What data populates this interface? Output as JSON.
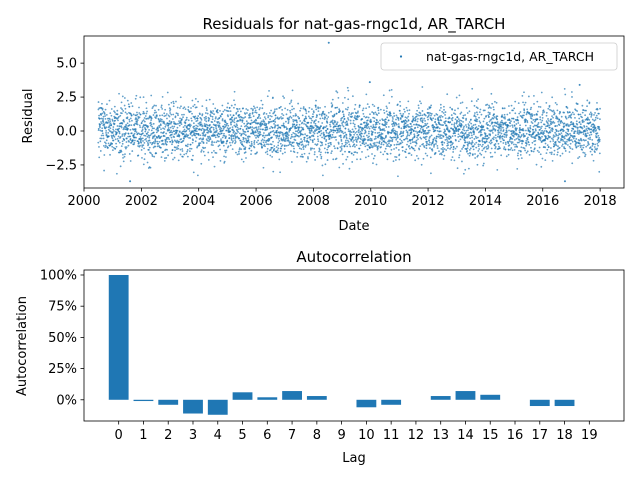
{
  "colors": {
    "series": "#1f77b4",
    "axes": "#000000",
    "legend_border": "#cccccc"
  },
  "chart_data": [
    {
      "type": "scatter",
      "title": "Residuals for nat-gas-rngc1d, AR_TARCH",
      "xlabel": "Date",
      "ylabel": "Residual",
      "x_range": [
        "2000-01-01",
        "2018-11-01"
      ],
      "ylim": [
        -4.2,
        7.0
      ],
      "x_ticks": [
        "2000",
        "2002",
        "2004",
        "2006",
        "2008",
        "2010",
        "2012",
        "2014",
        "2016",
        "2018"
      ],
      "y_ticks": [
        "−2.5",
        "0.0",
        "2.5",
        "5.0"
      ],
      "y_tick_values": [
        -2.5,
        0.0,
        2.5,
        5.0
      ],
      "x_start": "2000-07-01",
      "x_end": "2017-12-31",
      "observations": 4400,
      "residual_std": 1.0,
      "notable_points": [
        {
          "date": "2008-07-15",
          "residual": 6.5
        },
        {
          "date": "2009-12-20",
          "residual": 3.6
        },
        {
          "date": "2017-04-15",
          "residual": 3.4
        },
        {
          "date": "2016-10-10",
          "residual": -3.7
        },
        {
          "date": "2001-08-10",
          "residual": -3.7
        }
      ],
      "legend": {
        "label": "nat-gas-rngc1d, AR_TARCH",
        "position": "upper right"
      },
      "grid": false
    },
    {
      "type": "bar",
      "title": "Autocorrelation",
      "xlabel": "Lag",
      "ylabel": "Autocorrelation",
      "categories": [
        "0",
        "1",
        "2",
        "3",
        "4",
        "5",
        "6",
        "7",
        "8",
        "9",
        "10",
        "11",
        "12",
        "13",
        "14",
        "15",
        "16",
        "17",
        "18",
        "19"
      ],
      "values": [
        1.0,
        -0.01,
        -0.04,
        -0.11,
        -0.12,
        0.06,
        0.02,
        0.07,
        0.03,
        0.0,
        -0.06,
        -0.04,
        0.0,
        0.03,
        0.07,
        0.04,
        0.0,
        -0.05,
        -0.05,
        0.0
      ],
      "ylim": [
        -0.17,
        1.04
      ],
      "y_ticks": [
        "0%",
        "25%",
        "50%",
        "75%",
        "100%"
      ],
      "y_tick_values": [
        0.0,
        0.25,
        0.5,
        0.75,
        1.0
      ],
      "grid": false
    }
  ]
}
